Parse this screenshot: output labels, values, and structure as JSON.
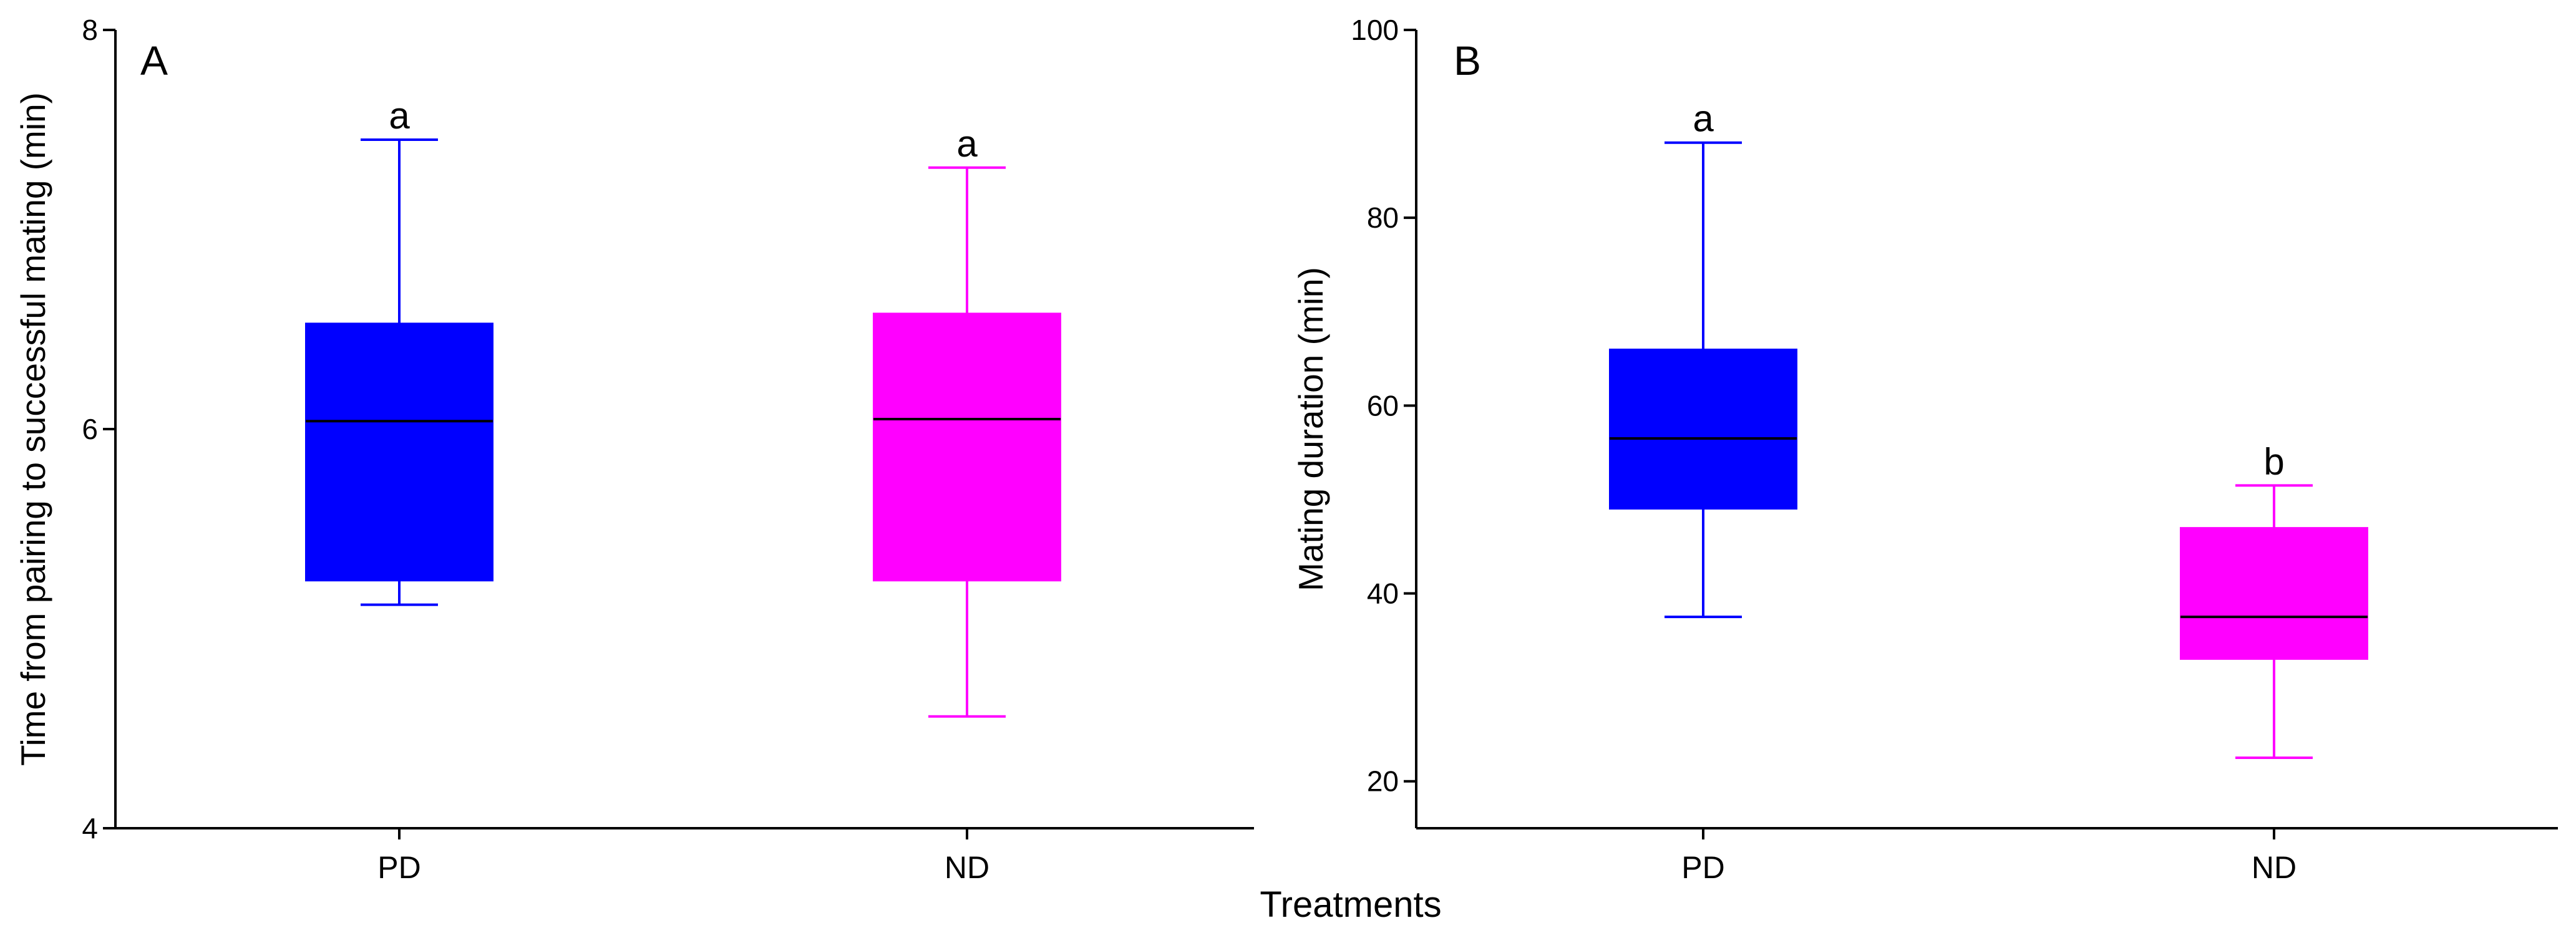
{
  "chart_data": [
    {
      "type": "box",
      "panel_label": "A",
      "title": "",
      "xlabel": "",
      "ylabel": "Time from pairing to successful mating (min)",
      "ylim": [
        4,
        8
      ],
      "yticks": [
        4,
        6,
        8
      ],
      "categories": [
        "PD",
        "ND"
      ],
      "boxes": [
        {
          "category": "PD",
          "whisker_low": 5.12,
          "q1": 5.24,
          "median": 6.04,
          "q3": 6.53,
          "whisker_high": 7.45,
          "significance": "a",
          "color": "#0000FF"
        },
        {
          "category": "ND",
          "whisker_low": 4.56,
          "q1": 5.24,
          "median": 6.05,
          "q3": 6.58,
          "whisker_high": 7.31,
          "significance": "a",
          "color": "#FF00FF"
        }
      ]
    },
    {
      "type": "box",
      "panel_label": "B",
      "title": "",
      "xlabel": "",
      "ylabel": "Mating duration (min)",
      "ylim": [
        15,
        100
      ],
      "yticks": [
        20,
        40,
        60,
        80,
        100
      ],
      "categories": [
        "PD",
        "ND"
      ],
      "boxes": [
        {
          "category": "PD",
          "whisker_low": 37.5,
          "q1": 49.0,
          "median": 56.5,
          "q3": 66.0,
          "whisker_high": 88.0,
          "significance": "a",
          "color": "#0000FF"
        },
        {
          "category": "ND",
          "whisker_low": 22.5,
          "q1": 33.0,
          "median": 37.5,
          "q3": 47.0,
          "whisker_high": 51.5,
          "significance": "b",
          "color": "#FF00FF"
        }
      ]
    }
  ],
  "shared_xlabel": "Treatments",
  "median_color": "#000000",
  "axis_color": "#000000"
}
